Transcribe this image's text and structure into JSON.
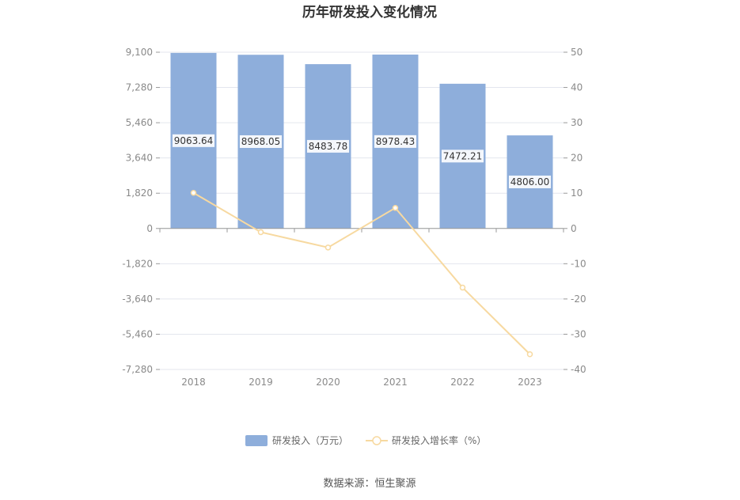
{
  "chart_data": {
    "type": "bar",
    "title": "历年研发投入变化情况",
    "categories": [
      "2018",
      "2019",
      "2020",
      "2021",
      "2022",
      "2023"
    ],
    "series": [
      {
        "name": "研发投入（万元）",
        "type": "bar",
        "axis": "left",
        "values": [
          9063.64,
          8968.05,
          8483.78,
          8978.43,
          7472.21,
          4806.0
        ],
        "labels": [
          "9063.64",
          "8968.05",
          "8483.78",
          "8978.43",
          "7472.21",
          "4806.00"
        ],
        "color": "#8eaedb"
      },
      {
        "name": "研发投入增长率（%）",
        "type": "line",
        "axis": "right",
        "values": [
          10.1,
          -1.05,
          -5.4,
          5.83,
          -16.78,
          -35.68
        ],
        "color": "#f7d9a0"
      }
    ],
    "y_left": {
      "ylim": [
        -7280,
        9100
      ],
      "ticks": [
        "9,100",
        "7,280",
        "5,460",
        "3,640",
        "1,820",
        "0",
        "-1,820",
        "-3,640",
        "-5,460",
        "-7,280"
      ]
    },
    "y_right": {
      "ylim": [
        -40,
        50
      ],
      "ticks": [
        "50",
        "40",
        "30",
        "20",
        "10",
        "0",
        "-10",
        "-20",
        "-30",
        "-40"
      ]
    },
    "grid": true,
    "legend": "bottom-center"
  },
  "source_text": "数据来源：恒生聚源"
}
